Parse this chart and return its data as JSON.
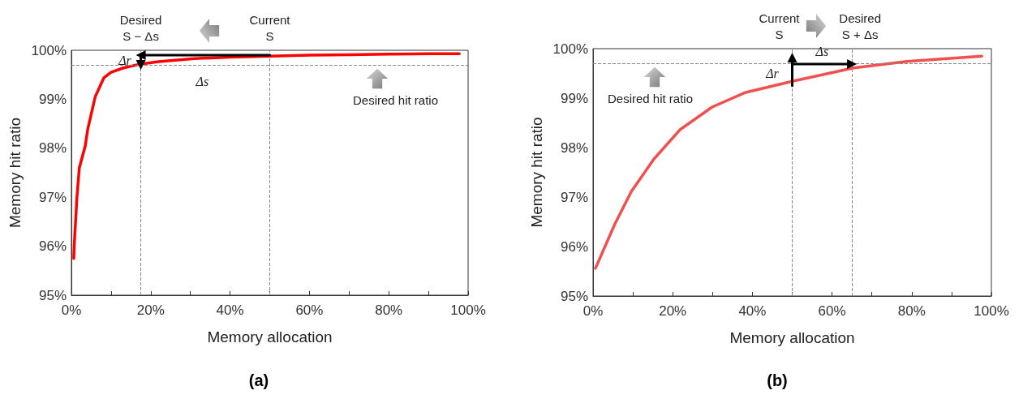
{
  "chart_data": [
    {
      "type": "line",
      "title": "(a)",
      "xlabel": "Memory allocation",
      "ylabel": "Memory hit ratio",
      "xlim": [
        0,
        100
      ],
      "ylim": [
        95,
        100
      ],
      "xticks": [
        {
          "value": 0,
          "label": "0%"
        },
        {
          "value": 10,
          "label": null
        },
        {
          "value": 20,
          "label": "20%"
        },
        {
          "value": 30,
          "label": null
        },
        {
          "value": 40,
          "label": "40%"
        },
        {
          "value": 50,
          "label": null
        },
        {
          "value": 60,
          "label": "60%"
        },
        {
          "value": 70,
          "label": null
        },
        {
          "value": 80,
          "label": "80%"
        },
        {
          "value": 90,
          "label": null
        },
        {
          "value": 100,
          "label": "100%"
        }
      ],
      "yticks": [
        {
          "value": 95,
          "label": "95%"
        },
        {
          "value": 96,
          "label": "96%"
        },
        {
          "value": 97,
          "label": "97%"
        },
        {
          "value": 98,
          "label": "98%"
        },
        {
          "value": 99,
          "label": "99%"
        },
        {
          "value": 100,
          "label": "100%"
        }
      ],
      "grid": false,
      "line_style": "solid",
      "series": [
        {
          "color": "#ff0000",
          "marker": "none",
          "x": [
            0.6,
            0.7,
            1.4,
            2,
            3.5,
            4.1,
            6,
            8.2,
            10,
            13.1,
            17.5,
            22,
            31,
            40,
            50,
            60,
            70,
            80,
            90,
            97.8
          ],
          "values": [
            95.75,
            96,
            97,
            97.6,
            98.05,
            98.38,
            99.05,
            99.44,
            99.55,
            99.64,
            99.72,
            99.77,
            99.83,
            99.86,
            99.88,
            99.9,
            99.91,
            99.92,
            99.93,
            99.93
          ]
        },
        {
          "color": "#000000",
          "marker": "triangle",
          "x": [
            50,
            17.5
          ],
          "values": [
            99.9,
            99.9
          ]
        },
        {
          "color": "#000000",
          "marker": "triangle",
          "x": [
            17.5,
            17.5
          ],
          "values": [
            99.9,
            99.7
          ]
        }
      ],
      "ref_lines": [
        {
          "axis": "x",
          "value": 17.5,
          "label": "Desired\nS − Δs",
          "color": "#888888",
          "line_style": "dashed"
        },
        {
          "axis": "x",
          "value": 50,
          "label": "Current\nS",
          "color": "#888888",
          "line_style": "dashed"
        },
        {
          "axis": "y",
          "value": 99.7,
          "label": "Desired hit ratio",
          "color": "#888888",
          "line_style": "dashed"
        }
      ],
      "annotations": [
        "Δs",
        "Δr"
      ]
    },
    {
      "type": "line",
      "title": "(b)",
      "xlabel": "Memory allocation",
      "ylabel": "Memory hit ratio",
      "xlim": [
        0,
        100
      ],
      "ylim": [
        95,
        100
      ],
      "xticks": [
        {
          "value": 0,
          "label": "0%"
        },
        {
          "value": 10,
          "label": null
        },
        {
          "value": 20,
          "label": "20%"
        },
        {
          "value": 30,
          "label": null
        },
        {
          "value": 40,
          "label": "40%"
        },
        {
          "value": 50,
          "label": null
        },
        {
          "value": 60,
          "label": "60%"
        },
        {
          "value": 70,
          "label": null
        },
        {
          "value": 80,
          "label": "80%"
        },
        {
          "value": 90,
          "label": null
        },
        {
          "value": 100,
          "label": "100%"
        }
      ],
      "yticks": [
        {
          "value": 95,
          "label": "95%"
        },
        {
          "value": 96,
          "label": "96%"
        },
        {
          "value": 97,
          "label": "97%"
        },
        {
          "value": 98,
          "label": "98%"
        },
        {
          "value": 99,
          "label": "99%"
        },
        {
          "value": 100,
          "label": "100%"
        }
      ],
      "grid": false,
      "line_style": "solid",
      "series": [
        {
          "color": "#f05050",
          "marker": "none",
          "x": [
            0.6,
            5.5,
            9.6,
            15.3,
            21.8,
            29.9,
            38.1,
            50,
            65.4,
            78.8,
            97.6
          ],
          "values": [
            95.56,
            96.46,
            97.11,
            97.77,
            98.36,
            98.82,
            99.11,
            99.34,
            99.61,
            99.74,
            99.85
          ]
        },
        {
          "color": "#000000",
          "marker": "triangle",
          "x": [
            50,
            50
          ],
          "values": [
            99.25,
            99.82
          ]
        },
        {
          "color": "#000000",
          "marker": "triangle",
          "x": [
            50,
            65
          ],
          "values": [
            99.69,
            99.69
          ]
        }
      ],
      "ref_lines": [
        {
          "axis": "x",
          "value": 50,
          "label": "Current\nS",
          "color": "#888888",
          "line_style": "dashed"
        },
        {
          "axis": "x",
          "value": 65,
          "label": "Desired\nS + Δs",
          "color": "#888888",
          "line_style": "dashed"
        },
        {
          "axis": "y",
          "value": 99.7,
          "label": "Desired hit ratio",
          "color": "#888888",
          "line_style": "dashed"
        }
      ],
      "annotations": [
        "Δs",
        "Δr"
      ]
    }
  ]
}
